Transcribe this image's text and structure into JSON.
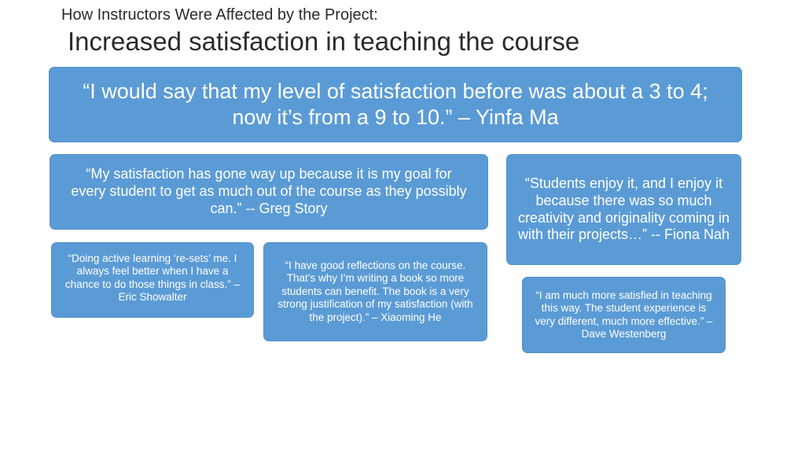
{
  "slide": {
    "supertitle": "How Instructors Were Affected by the Project:",
    "title": "Increased satisfaction in teaching the course"
  },
  "quotes": {
    "ma": "“I would say that my level of satisfaction before was about a 3 to 4; now it’s from a 9 to 10.” – Yinfa Ma",
    "story": "“My satisfaction has gone way up because it is my goal for every student to get as much out of the course as they possibly can.”  -- Greg Story",
    "nah": "“Students enjoy it, and I enjoy it because there was so much creativity and originality coming in with their projects…”  -- Fiona Nah",
    "showalter": "“Doing active learning ‘re-sets’ me. I always feel better when I have a chance to do those things in class.” – Eric Showalter",
    "he": "“I have good reflections on the course. That’s why I’m writing a book so more students can benefit. The book is a very strong justification of my satisfaction (with the project).” – Xiaoming He",
    "westenberg": "“I am much more satisfied in teaching this way. The student experience is very different, much more effective.” – Dave Westenberg"
  },
  "colors": {
    "box_fill": "#5b9bd5",
    "box_text": "#ffffff",
    "title_text": "#2b2b2b"
  }
}
